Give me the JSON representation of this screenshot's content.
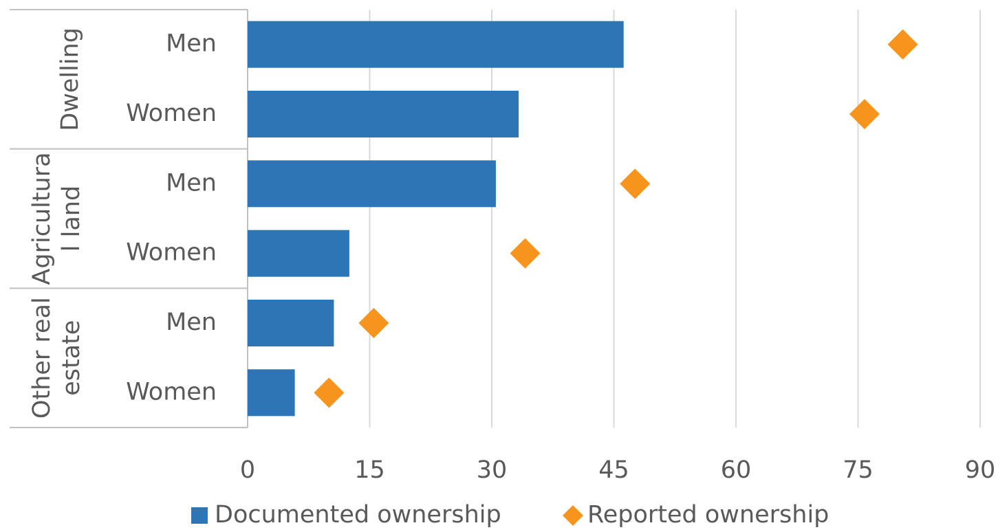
{
  "chart_data": {
    "type": "bar",
    "groups": [
      {
        "label": [
          "Dwelling"
        ],
        "categories": [
          "Men",
          "Women"
        ]
      },
      {
        "label": [
          "Agricultura",
          "l land"
        ],
        "categories": [
          "Men",
          "Women"
        ]
      },
      {
        "label": [
          "Other real",
          "estate"
        ],
        "categories": [
          "Men",
          "Women"
        ]
      }
    ],
    "series": [
      {
        "name": "Documented ownership",
        "type": "bar",
        "color": "#2e75b6",
        "values": [
          46.2,
          33.3,
          30.5,
          12.5,
          10.6,
          5.8
        ]
      },
      {
        "name": "Reported ownership",
        "type": "diamond",
        "color": "#f7941d",
        "values": [
          80.5,
          75.8,
          47.6,
          34.1,
          15.5,
          10.0
        ]
      }
    ],
    "xlim": [
      0,
      90
    ],
    "xticks": [
      0,
      15,
      30,
      45,
      60,
      75,
      90
    ],
    "grid": true,
    "legend": "bottom"
  }
}
